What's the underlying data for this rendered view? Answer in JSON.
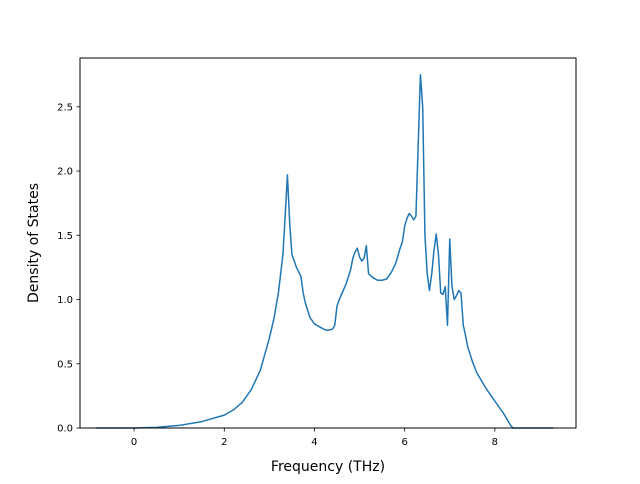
{
  "chart_data": {
    "type": "line",
    "xlabel": "Frequency (THz)",
    "ylabel": "Density of States",
    "xlim": [
      -1.2,
      9.8
    ],
    "ylim": [
      0.0,
      2.88
    ],
    "xticks": [
      0,
      2,
      4,
      6,
      8
    ],
    "xtick_labels": [
      "0",
      "2",
      "4",
      "6",
      "8"
    ],
    "yticks": [
      0.0,
      0.5,
      1.0,
      1.5,
      2.0,
      2.5
    ],
    "ytick_labels": [
      "0.0",
      "0.5",
      "1.0",
      "1.5",
      "2.0",
      "2.5"
    ],
    "grid": false,
    "series": [
      {
        "color": "#1f77b4",
        "x": [
          -0.85,
          0.0,
          0.5,
          1.0,
          1.5,
          2.0,
          2.2,
          2.4,
          2.6,
          2.8,
          3.0,
          3.1,
          3.2,
          3.3,
          3.35,
          3.4,
          3.45,
          3.5,
          3.6,
          3.7,
          3.75,
          3.8,
          3.9,
          4.0,
          4.2,
          4.3,
          4.4,
          4.45,
          4.5,
          4.55,
          4.6,
          4.7,
          4.8,
          4.85,
          4.9,
          4.95,
          5.0,
          5.05,
          5.1,
          5.15,
          5.2,
          5.3,
          5.4,
          5.5,
          5.6,
          5.7,
          5.8,
          5.9,
          5.95,
          6.0,
          6.05,
          6.1,
          6.15,
          6.2,
          6.25,
          6.3,
          6.35,
          6.4,
          6.45,
          6.5,
          6.55,
          6.6,
          6.65,
          6.7,
          6.75,
          6.8,
          6.85,
          6.9,
          6.95,
          7.0,
          7.05,
          7.1,
          7.15,
          7.2,
          7.25,
          7.3,
          7.35,
          7.4,
          7.5,
          7.6,
          7.8,
          8.0,
          8.2,
          8.3,
          8.35,
          8.4,
          8.45,
          8.6,
          8.8,
          9.0,
          9.3
        ],
        "y": [
          0.0,
          0.0,
          0.005,
          0.02,
          0.05,
          0.1,
          0.14,
          0.2,
          0.3,
          0.45,
          0.7,
          0.85,
          1.05,
          1.35,
          1.65,
          1.97,
          1.6,
          1.35,
          1.25,
          1.18,
          1.05,
          0.97,
          0.86,
          0.81,
          0.77,
          0.76,
          0.77,
          0.8,
          0.95,
          1.0,
          1.04,
          1.12,
          1.23,
          1.32,
          1.37,
          1.4,
          1.33,
          1.3,
          1.32,
          1.42,
          1.2,
          1.17,
          1.15,
          1.15,
          1.16,
          1.21,
          1.28,
          1.4,
          1.45,
          1.57,
          1.63,
          1.67,
          1.65,
          1.62,
          1.65,
          2.2,
          2.75,
          2.5,
          1.5,
          1.2,
          1.07,
          1.2,
          1.38,
          1.51,
          1.35,
          1.05,
          1.04,
          1.1,
          0.8,
          1.47,
          1.1,
          1.0,
          1.03,
          1.07,
          1.05,
          0.8,
          0.72,
          0.63,
          0.52,
          0.43,
          0.31,
          0.21,
          0.11,
          0.05,
          0.02,
          0.0,
          0.0,
          0.0,
          0.0,
          0.0,
          0.0
        ]
      }
    ]
  }
}
